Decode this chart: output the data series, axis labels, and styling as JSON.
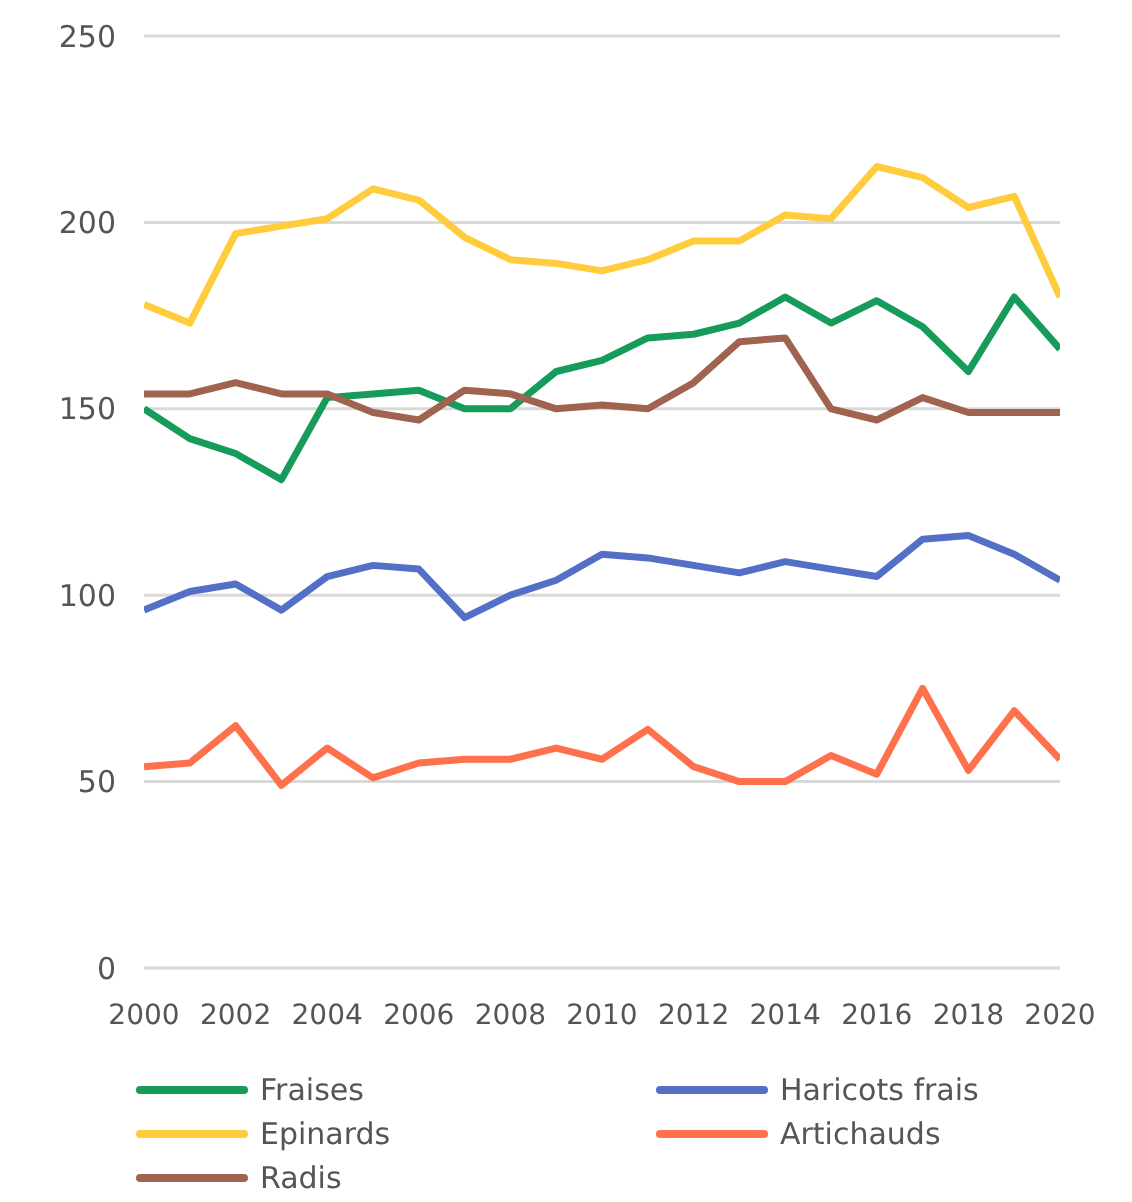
{
  "chart_data": {
    "type": "line",
    "x": [
      2000,
      2001,
      2002,
      2003,
      2004,
      2005,
      2006,
      2007,
      2008,
      2009,
      2010,
      2011,
      2012,
      2013,
      2014,
      2015,
      2016,
      2017,
      2018,
      2019,
      2020
    ],
    "series": [
      {
        "name": "Fraises",
        "color": "#169b5a",
        "values": [
          150,
          142,
          138,
          131,
          153,
          154,
          155,
          150,
          150,
          160,
          163,
          169,
          170,
          173,
          180,
          173,
          179,
          172,
          160,
          180,
          166
        ]
      },
      {
        "name": "Haricots frais",
        "color": "#5470c6",
        "values": [
          96,
          101,
          103,
          96,
          105,
          108,
          107,
          94,
          100,
          104,
          111,
          110,
          108,
          106,
          109,
          107,
          105,
          115,
          116,
          111,
          104
        ]
      },
      {
        "name": "Epinards",
        "color": "#ffcc3d",
        "values": [
          178,
          173,
          197,
          199,
          201,
          209,
          206,
          196,
          190,
          189,
          187,
          190,
          195,
          195,
          202,
          201,
          215,
          212,
          204,
          207,
          180
        ]
      },
      {
        "name": "Artichauds",
        "color": "#ff704d",
        "values": [
          54,
          55,
          65,
          49,
          59,
          51,
          55,
          56,
          56,
          59,
          56,
          64,
          54,
          50,
          50,
          57,
          52,
          75,
          53,
          69,
          56
        ]
      },
      {
        "name": "Radis",
        "color": "#a0634f",
        "values": [
          154,
          154,
          157,
          154,
          154,
          149,
          147,
          155,
          154,
          150,
          151,
          150,
          157,
          168,
          169,
          150,
          147,
          153,
          149,
          149,
          149
        ]
      }
    ],
    "xlim": [
      2000,
      2020
    ],
    "xticks": [
      2000,
      2002,
      2004,
      2006,
      2008,
      2010,
      2012,
      2014,
      2016,
      2018,
      2020
    ],
    "ylim": [
      0,
      250
    ],
    "yticks": [
      0,
      50,
      100,
      150,
      200,
      250
    ],
    "grid": "y",
    "legend": "bottom",
    "marker": "none",
    "line_style": "solid"
  }
}
